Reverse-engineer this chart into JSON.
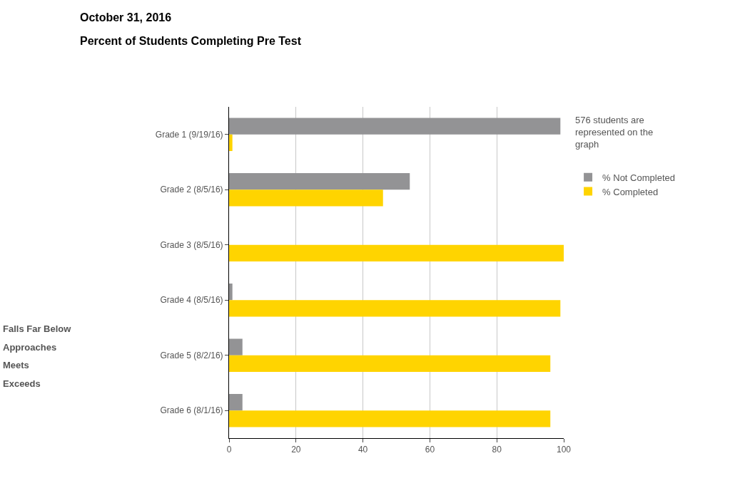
{
  "chart_data": {
    "type": "bar",
    "orientation": "horizontal",
    "title": "October 31, 2016",
    "subtitle": "Percent of Students Completing Pre Test",
    "categories": [
      "Grade 1 (9/19/16)",
      "Grade 2 (8/5/16)",
      "Grade 3 (8/5/16)",
      "Grade 4 (8/5/16)",
      "Grade 5 (8/2/16)",
      "Grade 6 (8/1/16)"
    ],
    "series": [
      {
        "name": "% Not Completed",
        "color": "#939395",
        "values": [
          99,
          54,
          0,
          1,
          4,
          4
        ]
      },
      {
        "name": "% Completed",
        "color": "#ffd400",
        "values": [
          1,
          46,
          100,
          99,
          96,
          96
        ]
      }
    ],
    "xlim": [
      0,
      100
    ],
    "xticks": [
      0,
      20,
      40,
      60,
      80,
      100
    ],
    "grid": "x",
    "legend": "right",
    "annotations": [
      "576 students are represented on the graph",
      "Falls Far Below",
      "Approaches",
      "Meets",
      "Exceeds"
    ]
  }
}
